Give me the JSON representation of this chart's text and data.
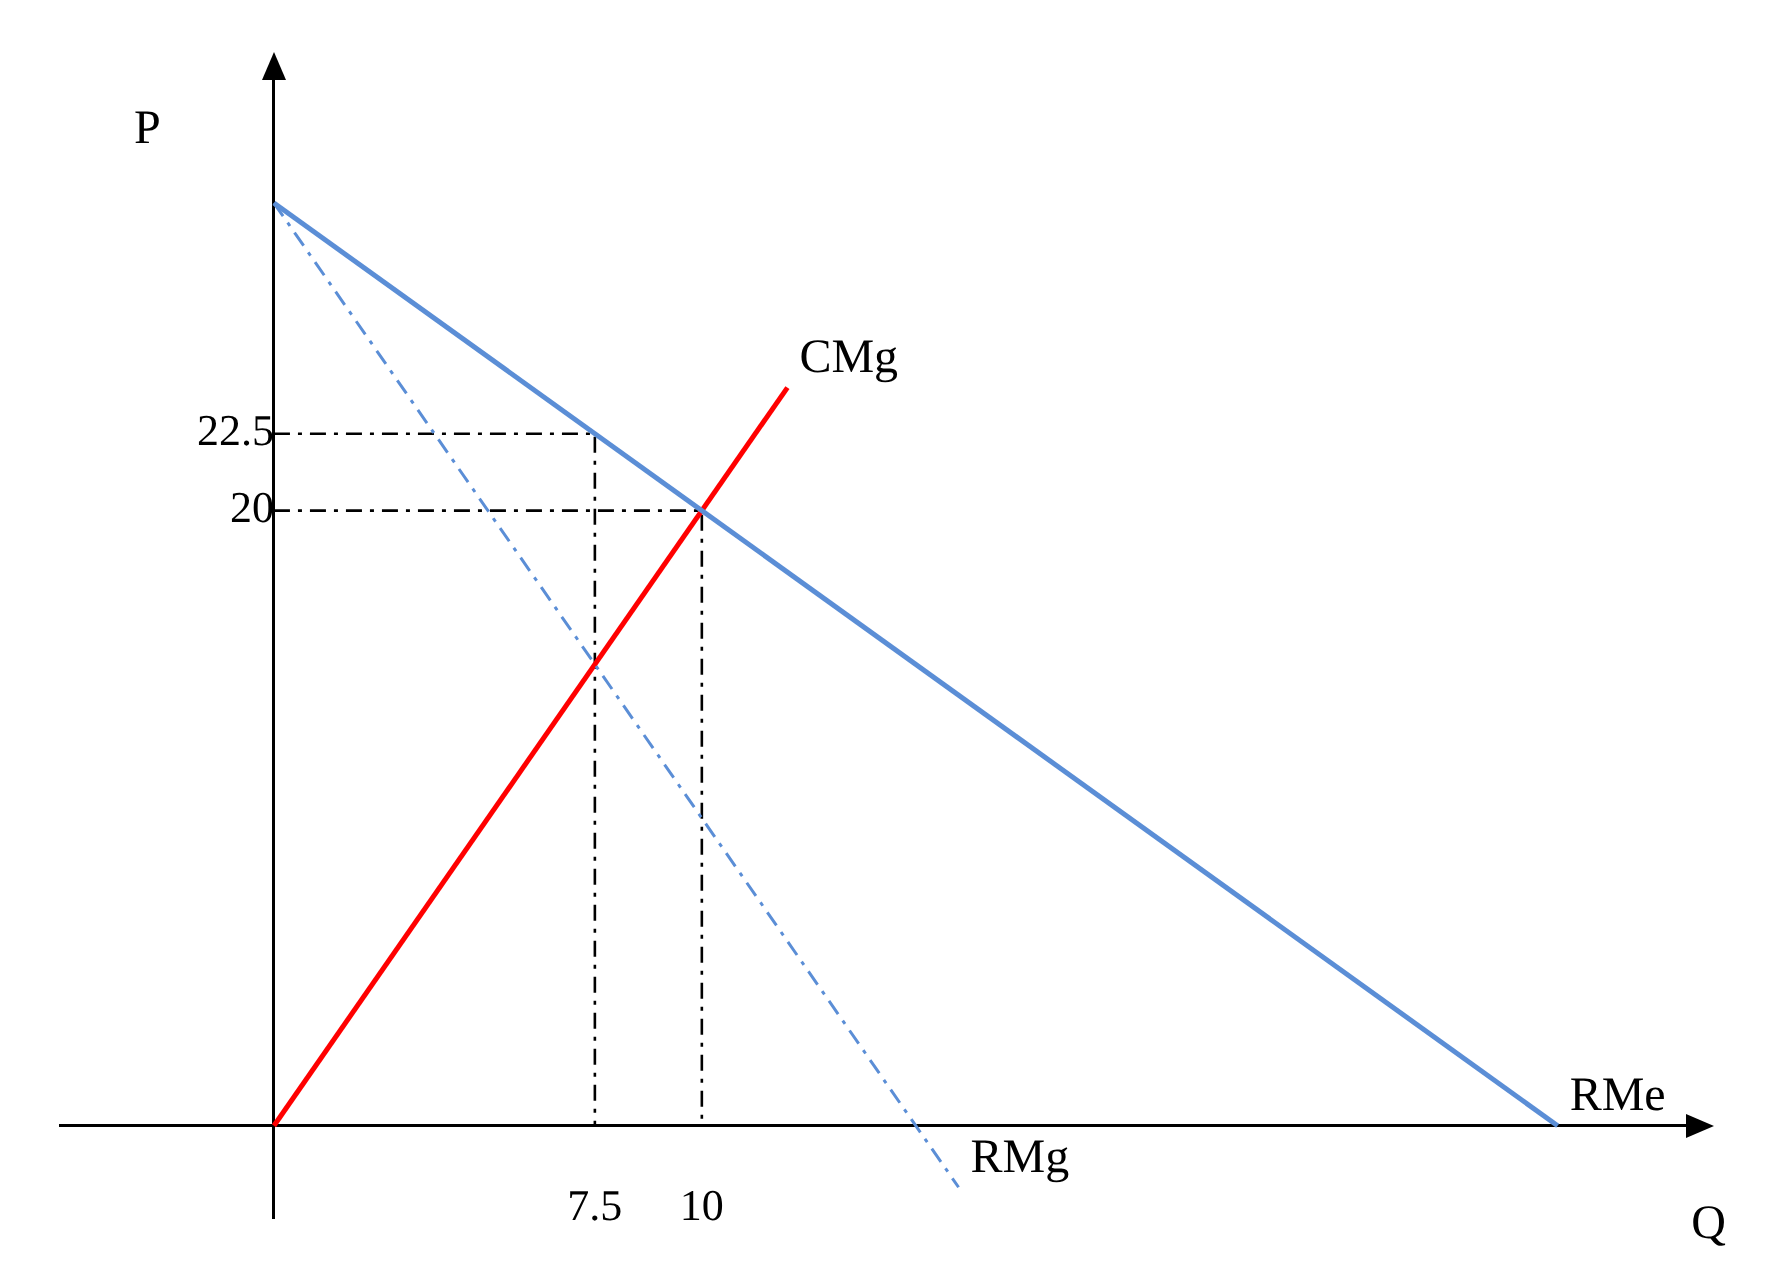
{
  "chart_data": {
    "type": "line",
    "xlabel": "Q",
    "ylabel": "P",
    "xlim": [
      -5,
      33
    ],
    "ylim": [
      -3,
      34
    ],
    "xticks": [
      7.5,
      10
    ],
    "yticks": [
      20,
      22.5
    ],
    "grid": false,
    "legend": false,
    "marker": "none",
    "series": [
      {
        "name": "RMe",
        "color": "#5b8ed6",
        "x": [
          0,
          30
        ],
        "values": [
          30,
          0
        ],
        "line_style": "solid"
      },
      {
        "name": "RMg",
        "color": "#5b8ed6",
        "x": [
          0,
          16
        ],
        "values": [
          30,
          -2
        ],
        "line_style": "dashed"
      },
      {
        "name": "CMg",
        "color": "#ff0000",
        "x": [
          0,
          12
        ],
        "values": [
          0,
          24
        ],
        "line_style": "solid"
      },
      {
        "color": "#000000",
        "x": [
          0,
          7.5,
          7.5
        ],
        "values": [
          22.5,
          22.5,
          0
        ],
        "line_style": "dashed"
      },
      {
        "color": "#000000",
        "x": [
          0,
          10,
          10
        ],
        "values": [
          20,
          20,
          0
        ],
        "line_style": "dashed"
      }
    ]
  }
}
